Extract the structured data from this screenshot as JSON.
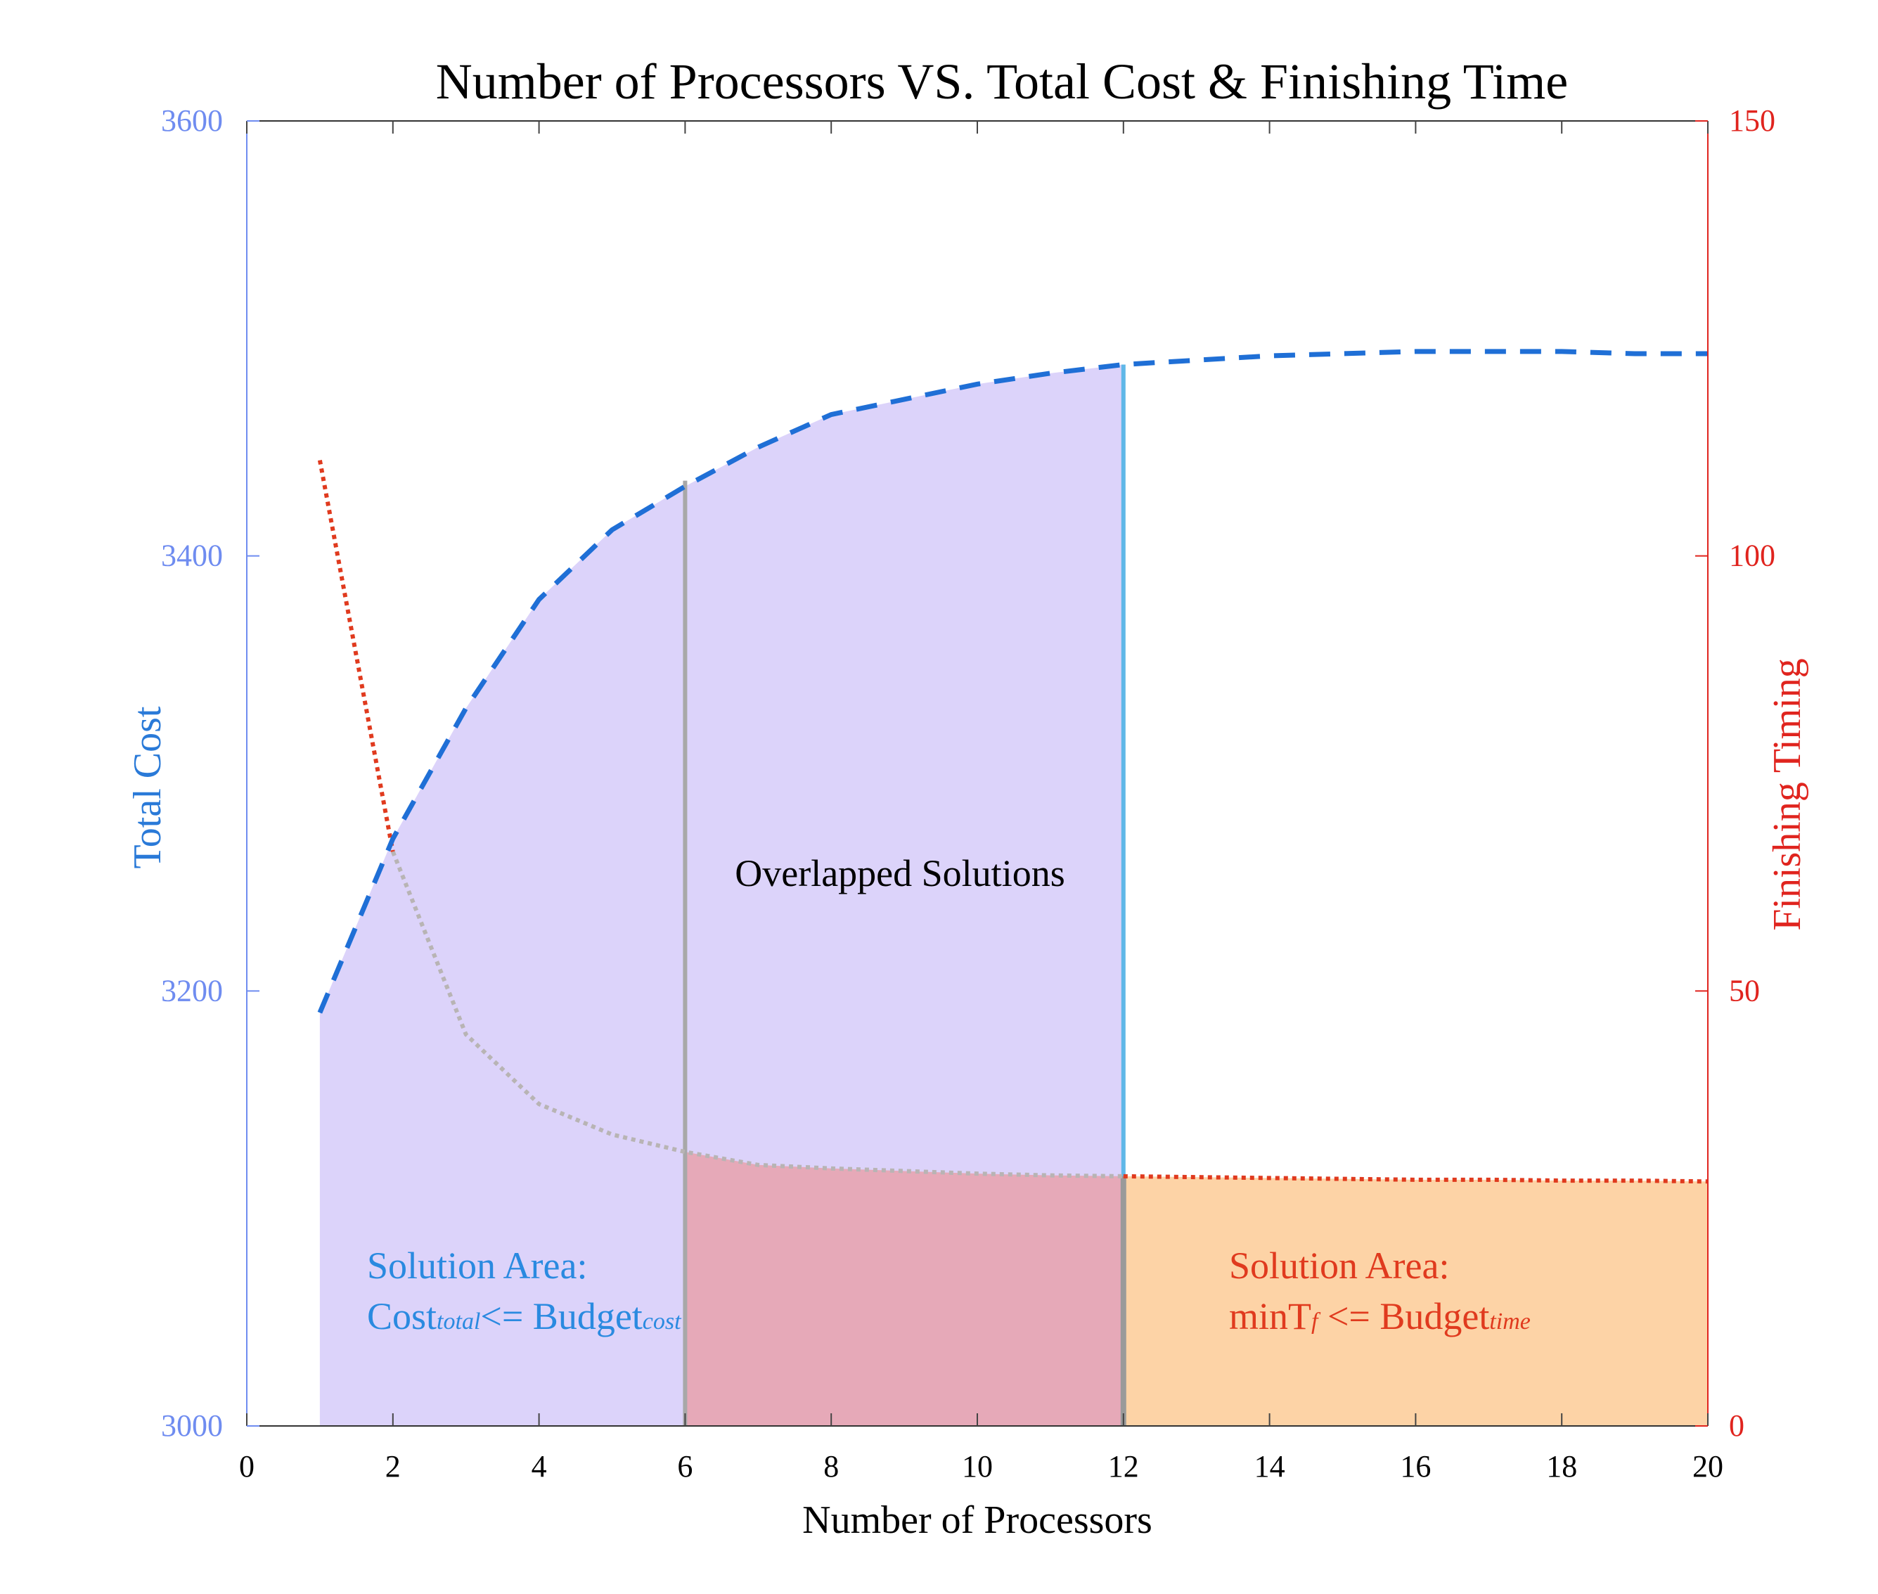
{
  "chart_data": {
    "type": "area",
    "title": "Number of Processors VS. Total Cost & Finishing Time",
    "xlabel": "Number of Processors",
    "ylabel_left": "Total Cost",
    "ylabel_right": "Finishing Timing",
    "xlim": [
      0,
      20
    ],
    "ylim_left": [
      3000,
      3600
    ],
    "ylim_right": [
      0,
      150
    ],
    "x_ticks": [
      "0",
      "2",
      "4",
      "6",
      "8",
      "10",
      "12",
      "14",
      "16",
      "18",
      "20"
    ],
    "y_left_ticks": [
      "3000",
      "3200",
      "3400",
      "3600"
    ],
    "y_right_ticks": [
      "0",
      "50",
      "100",
      "150"
    ],
    "grid": false,
    "series": [
      {
        "name": "Total Cost",
        "axis": "left",
        "style": "dashed",
        "color": "#1f6fd6",
        "x": [
          1,
          2,
          3,
          4,
          5,
          6,
          7,
          8,
          9,
          10,
          11,
          12,
          13,
          14,
          15,
          16,
          17,
          18,
          19,
          20
        ],
        "y": [
          3190,
          3270,
          3330,
          3380,
          3412,
          3432,
          3450,
          3465,
          3472,
          3479,
          3484,
          3488,
          3490,
          3492,
          3493,
          3494,
          3494,
          3494,
          3493,
          3493
        ]
      },
      {
        "name": "Finishing Time",
        "axis": "right",
        "style": "dotted",
        "color": "#e03a1e",
        "x": [
          1,
          2,
          3,
          4,
          5,
          6,
          7,
          8,
          9,
          10,
          11,
          12,
          13,
          14,
          15,
          16,
          17,
          18,
          19,
          20
        ],
        "y": [
          111,
          66,
          45,
          37,
          33.5,
          31.5,
          30,
          29.6,
          29.3,
          29.0,
          28.8,
          28.7,
          28.6,
          28.5,
          28.4,
          28.3,
          28.3,
          28.2,
          28.2,
          28.1
        ]
      }
    ],
    "regions": [
      {
        "name": "cost-solution-area",
        "x_range": [
          1,
          12
        ],
        "color": "#dcd3fa"
      },
      {
        "name": "time-solution-area",
        "x_range": [
          12,
          20
        ],
        "color": "#fdd3a6"
      },
      {
        "name": "overlap-region",
        "x_range": [
          6,
          12
        ],
        "color": "#e6a9b8"
      }
    ],
    "annotations": {
      "overlap_label": "Overlapped Solutions",
      "cost_area": {
        "line1": "Solution Area:",
        "prefix": "Cost",
        "sub1": "total",
        "mid": "<= Budget",
        "sub2": "cost",
        "color": "#2a8ae0"
      },
      "time_area": {
        "line1": "Solution Area:",
        "prefix": "minT",
        "sub1": "f",
        "mid": " <= Budget",
        "sub2": "time",
        "color": "#e03a1e"
      }
    },
    "colors": {
      "left_axis": "#6f8cf0",
      "right_axis": "#e0241e",
      "cost_line": "#1f6fd6",
      "time_line": "#e03a1e"
    }
  }
}
